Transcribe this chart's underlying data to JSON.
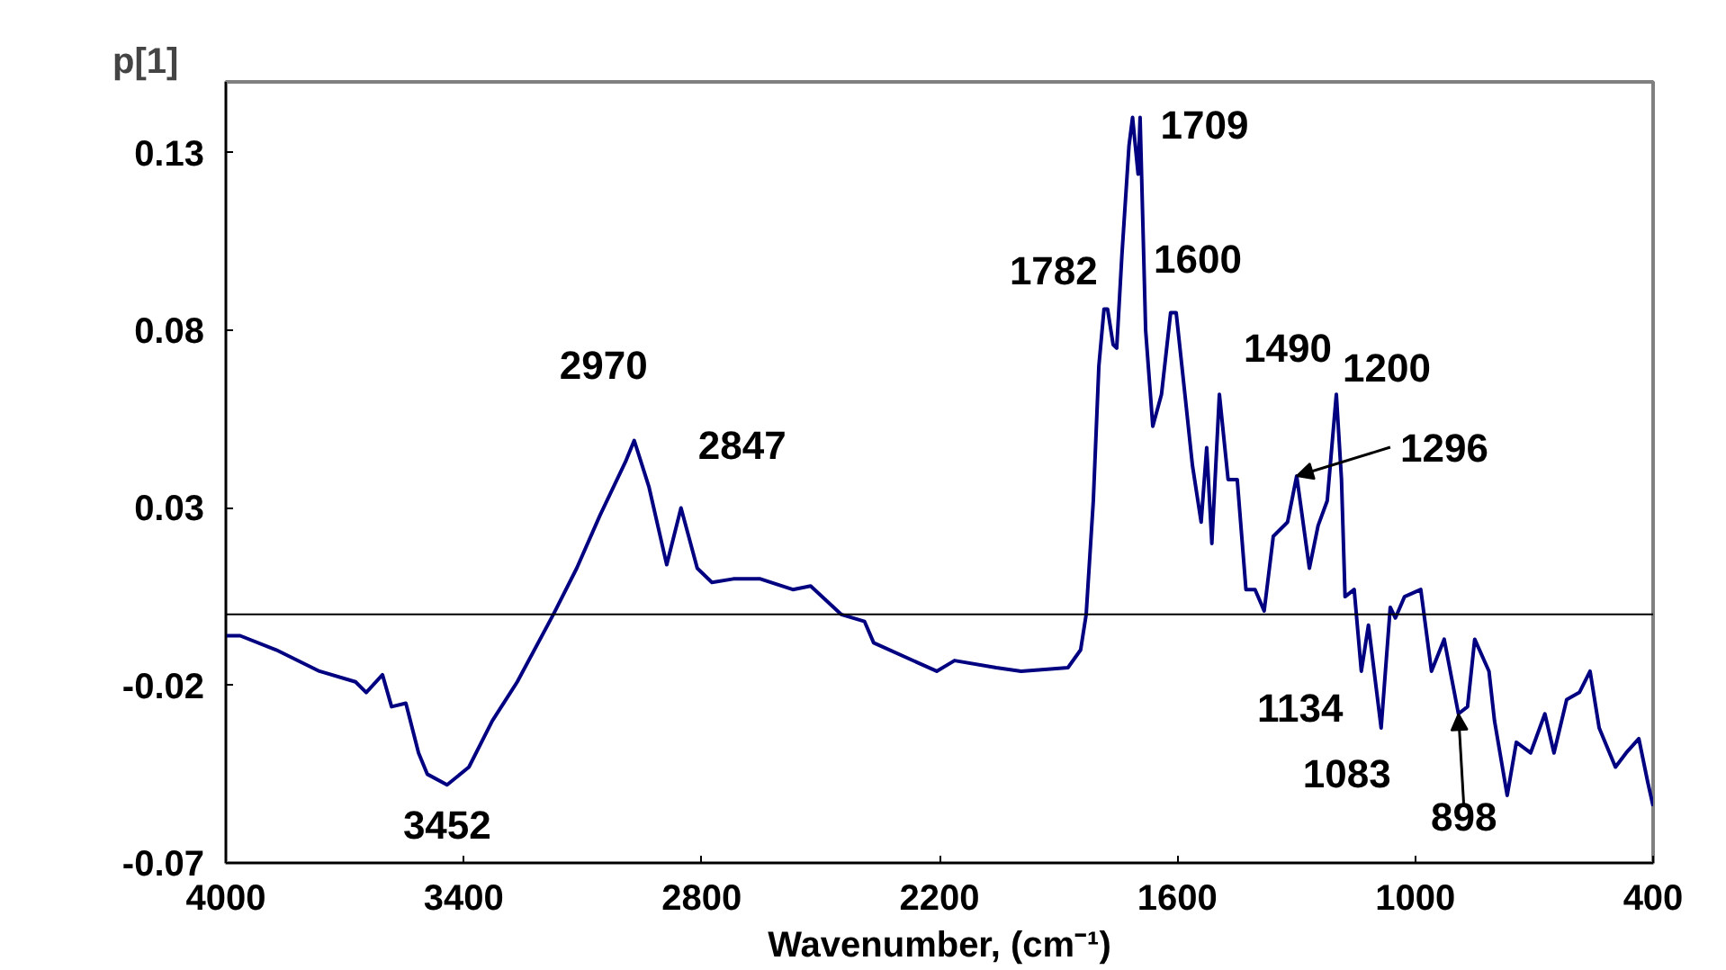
{
  "chart_data": {
    "type": "line",
    "ylabel": "p[1]",
    "xlabel": "Wavenumber, (cm⁻¹)",
    "x": [
      4000,
      3964,
      3873,
      3764,
      3673,
      3646,
      3605,
      3582,
      3546,
      3514,
      3492,
      3442,
      3387,
      3328,
      3265,
      3174,
      3115,
      3056,
      2992,
      2970,
      2933,
      2888,
      2852,
      2811,
      2774,
      2720,
      2652,
      2570,
      2525,
      2448,
      2389,
      2366,
      2207,
      2162,
      2057,
      1994,
      1876,
      1844,
      1830,
      1812,
      1798,
      1785,
      1776,
      1762,
      1753,
      1740,
      1722,
      1713,
      1699,
      1694,
      1680,
      1662,
      1640,
      1617,
      1603,
      1580,
      1562,
      1540,
      1526,
      1513,
      1494,
      1472,
      1449,
      1427,
      1404,
      1381,
      1358,
      1322,
      1299,
      1267,
      1245,
      1222,
      1199,
      1186,
      1177,
      1154,
      1136,
      1118,
      1086,
      1063,
      1050,
      1027,
      986,
      959,
      927,
      891,
      868,
      850,
      814,
      800,
      768,
      745,
      709,
      673,
      650,
      618,
      586,
      559,
      536,
      495,
      468,
      436,
      414,
      400
    ],
    "series": [
      {
        "color": "#000080",
        "values": [
          -0.006,
          -0.006,
          -0.01,
          -0.016,
          -0.019,
          -0.022,
          -0.017,
          -0.026,
          -0.025,
          -0.039,
          -0.045,
          -0.048,
          -0.043,
          -0.03,
          -0.019,
          0.0,
          0.013,
          0.028,
          0.043,
          0.049,
          0.036,
          0.014,
          0.03,
          0.013,
          0.009,
          0.01,
          0.01,
          0.007,
          0.008,
          0.0,
          -0.002,
          -0.008,
          -0.016,
          -0.013,
          -0.015,
          -0.016,
          -0.015,
          -0.01,
          0.0,
          0.032,
          0.07,
          0.086,
          0.086,
          0.076,
          0.075,
          0.101,
          0.132,
          0.14,
          0.124,
          0.14,
          0.08,
          0.053,
          0.062,
          0.085,
          0.085,
          0.061,
          0.042,
          0.026,
          0.047,
          0.02,
          0.062,
          0.038,
          0.038,
          0.007,
          0.007,
          0.001,
          0.022,
          0.026,
          0.039,
          0.013,
          0.025,
          0.032,
          0.062,
          0.038,
          0.005,
          0.007,
          -0.016,
          -0.003,
          -0.032,
          0.002,
          -0.001,
          0.005,
          0.007,
          -0.016,
          -0.007,
          -0.028,
          -0.026,
          -0.007,
          -0.016,
          -0.03,
          -0.051,
          -0.036,
          -0.039,
          -0.028,
          -0.039,
          -0.024,
          -0.022,
          -0.016,
          -0.032,
          -0.043,
          -0.039,
          -0.035,
          -0.047,
          -0.054
        ]
      }
    ],
    "xlim": [
      4000,
      400
    ],
    "xticks": [
      4000,
      3400,
      2800,
      2200,
      1600,
      1000,
      400
    ],
    "ylim": [
      -0.07,
      0.15
    ],
    "yticks": [
      -0.07,
      -0.02,
      0.03,
      0.08,
      0.13
    ],
    "ref_lines": [
      {
        "axis": "y",
        "value": 0,
        "color": "#000000"
      }
    ],
    "annotations": [
      {
        "text": "2970",
        "x": 2970,
        "y": 0.049
      },
      {
        "text": "2847",
        "x": 2852,
        "y": 0.03
      },
      {
        "text": "3452",
        "x": 3442,
        "y": -0.048
      },
      {
        "text": "1782",
        "x": 1785,
        "y": 0.086
      },
      {
        "text": "1709",
        "x": 1713,
        "y": 0.14
      },
      {
        "text": "1600",
        "x": 1603,
        "y": 0.085
      },
      {
        "text": "1490",
        "x": 1494,
        "y": 0.062
      },
      {
        "text": "1200",
        "x": 1199,
        "y": 0.062
      },
      {
        "text": "1296",
        "x": 1299,
        "y": 0.039
      },
      {
        "text": "1134",
        "x": 1136,
        "y": -0.016
      },
      {
        "text": "1083",
        "x": 1086,
        "y": -0.032
      },
      {
        "text": "898",
        "x": 891,
        "y": -0.028
      }
    ],
    "grid": false,
    "marker": "none",
    "line_style": "solid"
  }
}
